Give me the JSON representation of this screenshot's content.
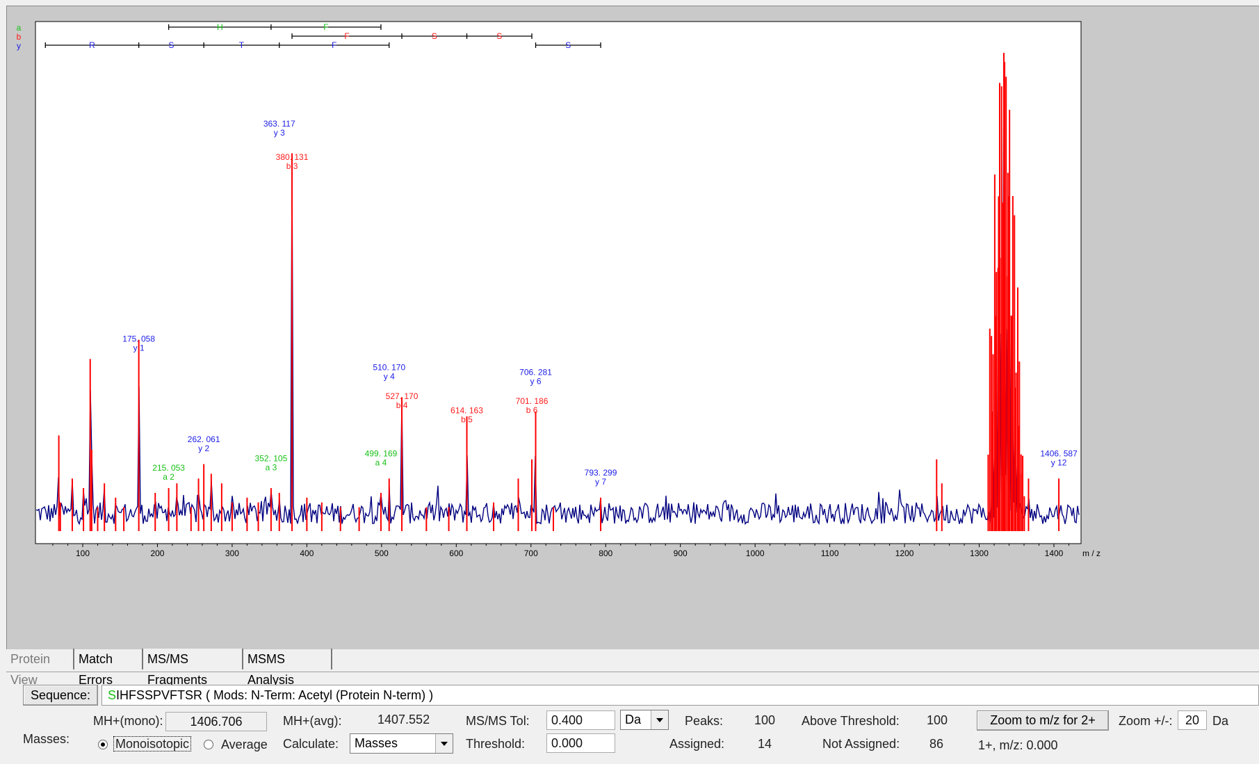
{
  "ion_legend": [
    {
      "label": "a",
      "color": "#16c016"
    },
    {
      "label": "b",
      "color": "#ff1a1a"
    },
    {
      "label": "y",
      "color": "#1c1ce6"
    }
  ],
  "colors": {
    "a": "#16c016",
    "b": "#ff1a1a",
    "y": "#1c1ce6",
    "trace": "#000080",
    "peak": "#ff0000"
  },
  "chart_data": {
    "type": "line",
    "xlabel": "m / z",
    "xlim": [
      50,
      1440
    ],
    "x_ticks": [
      "100",
      "200",
      "300",
      "400",
      "500",
      "600",
      "700",
      "800",
      "900",
      "1000",
      "1100",
      "1200",
      "1300",
      "1400"
    ],
    "ladders": [
      {
        "ion": "a",
        "ticks": [
          215.053,
          352.105,
          499.169
        ],
        "residues": [
          {
            "from": 215.053,
            "to": 352.105,
            "label": "H"
          },
          {
            "from": 352.105,
            "to": 499.169,
            "label": "F"
          }
        ]
      },
      {
        "ion": "b",
        "ticks": [
          380.131,
          527.17,
          614.163,
          701.186
        ],
        "residues": [
          {
            "from": 380.131,
            "to": 527.17,
            "label": "F"
          },
          {
            "from": 527.17,
            "to": 614.163,
            "label": "S"
          },
          {
            "from": 614.163,
            "to": 701.186,
            "label": "S"
          }
        ]
      },
      {
        "ion": "y",
        "ticks": [
          50,
          175.058,
          262.061,
          363.117,
          510.17,
          706.281,
          793.299
        ],
        "residues": [
          {
            "from": 50,
            "to": 175.058,
            "label": "R"
          },
          {
            "from": 175.058,
            "to": 262.061,
            "label": "S"
          },
          {
            "from": 262.061,
            "to": 363.117,
            "label": "T"
          },
          {
            "from": 363.117,
            "to": 510.17,
            "label": "F"
          },
          {
            "from": 706.281,
            "to": 793.299,
            "label": "S"
          }
        ]
      }
    ],
    "annotated_peaks": [
      {
        "ion": "y",
        "name": "y  1",
        "mz": "175. 058",
        "x": 175.058,
        "y": 0.37
      },
      {
        "ion": "y",
        "name": "y  2",
        "mz": "262. 061",
        "x": 262.061,
        "y": 0.16
      },
      {
        "ion": "a",
        "name": "a  2",
        "mz": "215. 053",
        "x": 215.053,
        "y": 0.1
      },
      {
        "ion": "a",
        "name": "a  3",
        "mz": "352. 105",
        "x": 352.105,
        "y": 0.12
      },
      {
        "ion": "y",
        "name": "y  3",
        "mz": "363. 117",
        "x": 363.117,
        "y": 0.82
      },
      {
        "ion": "b",
        "name": "b  3",
        "mz": "380. 131",
        "x": 380.131,
        "y": 0.75
      },
      {
        "ion": "a",
        "name": "a  4",
        "mz": "499. 169",
        "x": 499.169,
        "y": 0.13
      },
      {
        "ion": "y",
        "name": "y  4",
        "mz": "510. 170",
        "x": 510.17,
        "y": 0.31
      },
      {
        "ion": "b",
        "name": "b  4",
        "mz": "527. 170",
        "x": 527.17,
        "y": 0.25
      },
      {
        "ion": "b",
        "name": "b  5",
        "mz": "614. 163",
        "x": 614.163,
        "y": 0.22
      },
      {
        "ion": "b",
        "name": "b  6",
        "mz": "701. 186",
        "x": 701.186,
        "y": 0.24
      },
      {
        "ion": "y",
        "name": "y  6",
        "mz": "706. 281",
        "x": 706.281,
        "y": 0.3
      },
      {
        "ion": "y",
        "name": "y  7",
        "mz": "793. 299",
        "x": 793.299,
        "y": 0.09
      },
      {
        "ion": "y",
        "name": "y  12",
        "mz": "1406. 587",
        "x": 1406.587,
        "y": 0.13
      }
    ],
    "peaks": [
      [
        68,
        0.2
      ],
      [
        70,
        0.06
      ],
      [
        86,
        0.11
      ],
      [
        101,
        0.09
      ],
      [
        110,
        0.36
      ],
      [
        112,
        0.17
      ],
      [
        120,
        0.05
      ],
      [
        129,
        0.1
      ],
      [
        144,
        0.07
      ],
      [
        155,
        0.05
      ],
      [
        175.06,
        0.4
      ],
      [
        197,
        0.08
      ],
      [
        215.05,
        0.09
      ],
      [
        226,
        0.1
      ],
      [
        245,
        0.05
      ],
      [
        255,
        0.11
      ],
      [
        262.06,
        0.14
      ],
      [
        272,
        0.12
      ],
      [
        286,
        0.1
      ],
      [
        300,
        0.06
      ],
      [
        320,
        0.07
      ],
      [
        335,
        0.06
      ],
      [
        352.1,
        0.09
      ],
      [
        363.12,
        0.08
      ],
      [
        380.13,
        0.79
      ],
      [
        400,
        0.07
      ],
      [
        420,
        0.06
      ],
      [
        445,
        0.05
      ],
      [
        470,
        0.05
      ],
      [
        499.17,
        0.08
      ],
      [
        510.17,
        0.11
      ],
      [
        527.17,
        0.28
      ],
      [
        560,
        0.05
      ],
      [
        590,
        0.05
      ],
      [
        614.16,
        0.24
      ],
      [
        650,
        0.06
      ],
      [
        683,
        0.11
      ],
      [
        701.19,
        0.15
      ],
      [
        706.28,
        0.25
      ],
      [
        730,
        0.05
      ],
      [
        793.3,
        0.07
      ],
      [
        1243,
        0.15
      ],
      [
        1250,
        0.1
      ],
      [
        1318,
        0.25
      ],
      [
        1322,
        0.45
      ],
      [
        1326,
        0.7
      ],
      [
        1330,
        0.93
      ],
      [
        1333,
        1.0
      ],
      [
        1336,
        0.95
      ],
      [
        1340,
        0.7
      ],
      [
        1344,
        0.45
      ],
      [
        1348,
        0.3
      ],
      [
        1352,
        0.22
      ],
      [
        1356,
        0.12
      ],
      [
        1366,
        0.11
      ],
      [
        1406.59,
        0.11
      ]
    ]
  },
  "tabs": [
    {
      "label": "Protein View",
      "state": "disabled"
    },
    {
      "label": "Match Errors",
      "state": "normal"
    },
    {
      "label": "MS/MS Fragments",
      "state": "active"
    },
    {
      "label": "MSMS Analysis",
      "state": "normal"
    }
  ],
  "sequence": {
    "button_label": "Sequence:",
    "first_residue": "S",
    "rest": "IHFSSPVFTSR ( Mods: N-Term: Acetyl (Protein N-term) )"
  },
  "masses": {
    "label": "Masses:",
    "mh_mono_label": "MH+(mono):",
    "mh_mono_value": "1406.706",
    "mh_avg_label": "MH+(avg):",
    "mh_avg_value": "1407.552",
    "mono_radio_label": "Monoisotopic",
    "avg_radio_label": "Average",
    "mono_selected": true,
    "calculate_label": "Calculate:",
    "calculate_value": "Masses",
    "msms_tol_label": "MS/MS Tol:",
    "msms_tol_value": "0.400",
    "tol_unit": "Da",
    "threshold_label": "Threshold:",
    "threshold_value": "0.000",
    "peaks_label": "Peaks:",
    "peaks_value": "100",
    "assigned_label": "Assigned:",
    "assigned_value": "14",
    "above_threshold_label": "Above Threshold:",
    "above_threshold_value": "100",
    "not_assigned_label": "Not Assigned:",
    "not_assigned_value": "86",
    "zoom_button_label": "Zoom to m/z for 2+",
    "zoom_label": "Zoom +/-:",
    "zoom_value": "20",
    "zoom_unit": "Da",
    "mz_readout": "1+, m/z: 0.000"
  }
}
